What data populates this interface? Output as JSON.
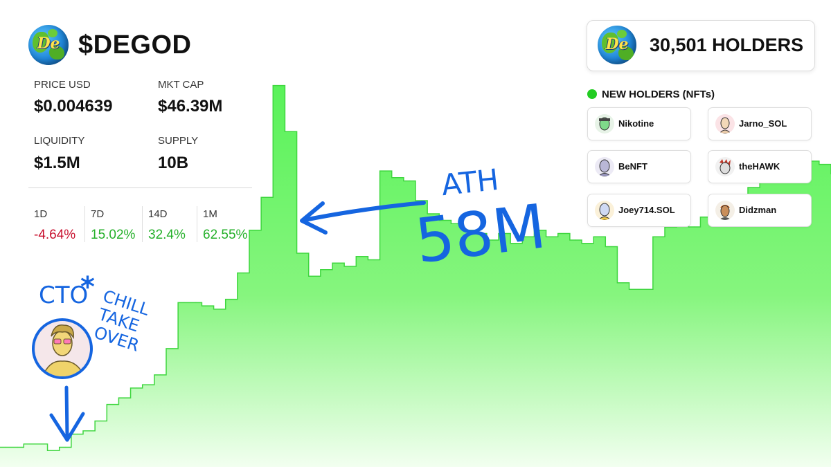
{
  "token": {
    "symbol": "$DEGOD",
    "logo_text": "De",
    "logo_icon": "globe-coin-icon"
  },
  "stats": [
    {
      "label": "PRICE USD",
      "value": "$0.004639"
    },
    {
      "label": "MKT CAP",
      "value": "$46.39M"
    },
    {
      "label": "LIQUIDITY",
      "value": "$1.5M"
    },
    {
      "label": "SUPPLY",
      "value": "10B"
    }
  ],
  "periods": [
    {
      "label": "1D",
      "value": "-4.64%",
      "trend": "down"
    },
    {
      "label": "7D",
      "value": "15.02%",
      "trend": "up"
    },
    {
      "label": "14D",
      "value": "32.4%",
      "trend": "up"
    },
    {
      "label": "1M",
      "value": "62.55%",
      "trend": "up"
    }
  ],
  "holders": {
    "count_text": "30,501 HOLDERS"
  },
  "new_holders": {
    "title": "NEW HOLDERS (NFTs)",
    "items": [
      {
        "name": "Nikotine"
      },
      {
        "name": "Jarno_SOL"
      },
      {
        "name": "BeNFT"
      },
      {
        "name": "theHAWK"
      },
      {
        "name": "Joey714.SOL"
      },
      {
        "name": "Didzman"
      }
    ]
  },
  "annotations": {
    "ath_label": "ATH",
    "ath_value": "58M",
    "cto_label": "CTO",
    "cto_star": "*",
    "chill_lines": [
      "CHILL",
      "TAKE",
      "OVER"
    ]
  },
  "colors": {
    "area_top": "#59f259",
    "area_bottom": "#f2fff0",
    "ink_blue": "#1565e0",
    "negative": "#c8102e",
    "positive": "#25b02a"
  },
  "chart_data": {
    "type": "area",
    "title": "",
    "xlabel": "",
    "ylabel": "",
    "ylim": [
      0,
      71
    ],
    "grid": false,
    "legend": "none",
    "annotations": [
      {
        "label": "ATH 58M",
        "x": 23,
        "y": 58
      }
    ],
    "x": [
      0,
      1,
      2,
      3,
      4,
      5,
      6,
      7,
      8,
      9,
      10,
      11,
      12,
      13,
      14,
      15,
      16,
      17,
      18,
      19,
      20,
      21,
      22,
      23,
      24,
      25,
      26,
      27,
      28,
      29,
      30,
      31,
      32,
      33,
      34,
      35,
      36,
      37,
      38,
      39,
      40,
      41,
      42,
      43,
      44,
      45,
      46,
      47,
      48,
      49,
      50,
      51,
      52,
      53,
      54,
      55,
      56,
      57,
      58,
      59,
      60,
      61,
      62,
      63,
      64,
      65,
      66,
      67,
      68,
      69,
      70
    ],
    "y": [
      3,
      3,
      3.5,
      3.5,
      2.5,
      3,
      5,
      5.5,
      7,
      9.5,
      10.5,
      12,
      12.5,
      14,
      18,
      25,
      25,
      24.5,
      24,
      25.5,
      29.5,
      36,
      41,
      58,
      51,
      32.5,
      29,
      30,
      31,
      30.5,
      32,
      31.5,
      45,
      44,
      43.5,
      40.5,
      38.5,
      37.5,
      37,
      36,
      35.5,
      34.5,
      35.5,
      34,
      35,
      36,
      35,
      35.5,
      34.5,
      34,
      35,
      33.5,
      28,
      27,
      27,
      35,
      36.5,
      37,
      36.5,
      38,
      40,
      41,
      40,
      42.5,
      44,
      47,
      48,
      46.5,
      46.5,
      46,
      44.5
    ]
  }
}
